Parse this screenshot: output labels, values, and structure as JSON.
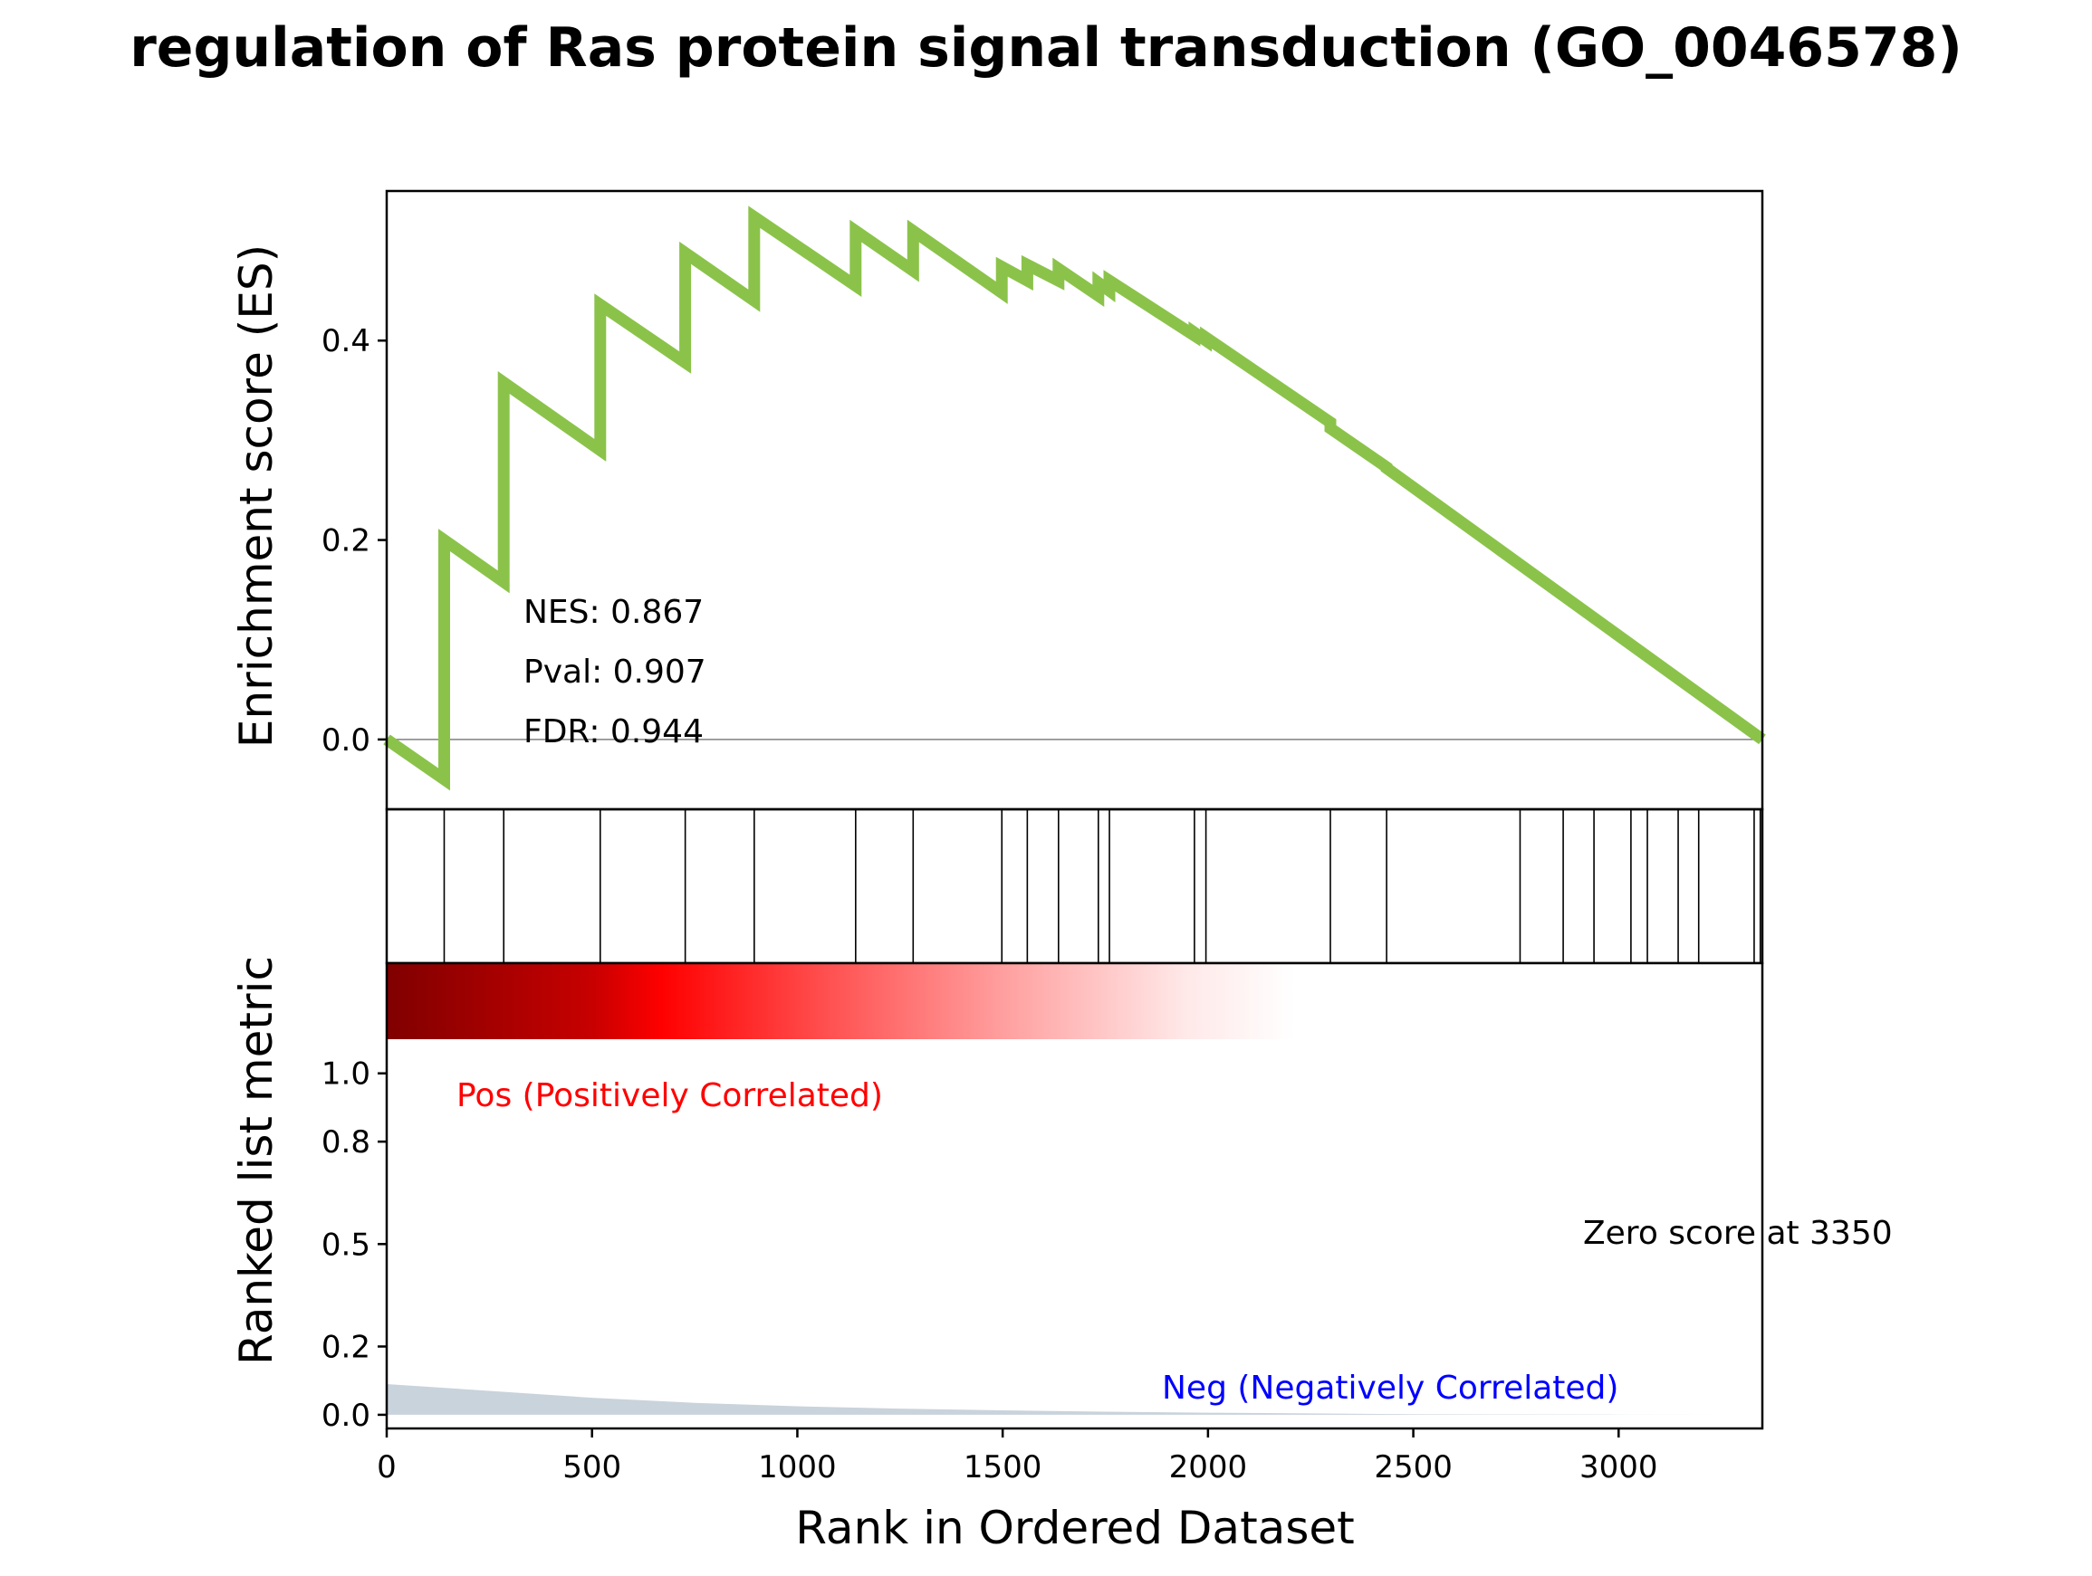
{
  "chart_data": {
    "type": "line",
    "title": "regulation of Ras protein signal transduction (GO_0046578)",
    "xlabel": "Rank in Ordered Dataset",
    "xlim": [
      0,
      3350
    ],
    "x_ticks": [
      0,
      500,
      1000,
      1500,
      2000,
      2500,
      3000
    ],
    "x_tick_labels": [
      "0",
      "500",
      "1000",
      "1500",
      "2000",
      "2500",
      "3000"
    ],
    "es_panel": {
      "ylabel": "Enrichment score (ES)",
      "ylim": [
        -0.07,
        0.55
      ],
      "y_ticks": [
        0.0,
        0.2,
        0.4
      ],
      "y_tick_labels": [
        "0.0",
        "0.2",
        "0.4"
      ],
      "line_color": "#8BC34A",
      "zero_line": true,
      "series": [
        {
          "x": [
            0,
            140,
            140,
            285,
            285,
            520,
            520,
            727,
            727,
            895,
            895,
            1142,
            1142,
            1282,
            1282,
            1498,
            1498,
            1560,
            1560,
            1636,
            1636,
            1733,
            1733,
            1760,
            1760,
            1967,
            1967,
            1995,
            1995,
            2298,
            2298,
            2435,
            2435,
            3350
          ],
          "y": [
            0.0,
            -0.04,
            0.2,
            0.158,
            0.358,
            0.29,
            0.436,
            0.378,
            0.488,
            0.44,
            0.524,
            0.455,
            0.51,
            0.47,
            0.51,
            0.448,
            0.474,
            0.46,
            0.476,
            0.46,
            0.472,
            0.445,
            0.458,
            0.45,
            0.46,
            0.405,
            0.408,
            0.4,
            0.403,
            0.318,
            0.312,
            0.273,
            0.272,
            0.0
          ]
        }
      ],
      "annotations": [
        "NES: 0.867",
        "Pval: 0.907",
        "FDR: 0.944"
      ]
    },
    "hits_panel": {
      "positions": [
        140,
        285,
        520,
        727,
        895,
        1142,
        1282,
        1498,
        1560,
        1636,
        1733,
        1760,
        1967,
        1995,
        2298,
        2435,
        2760,
        2865,
        2940,
        3030,
        3070,
        3145,
        3195,
        3330,
        3345
      ]
    },
    "rank_panel": {
      "ylabel": "Ranked list metric",
      "ylim": [
        -0.04,
        1.1
      ],
      "y_ticks": [
        0.0,
        0.2,
        0.5,
        0.8,
        1.0
      ],
      "y_tick_labels": [
        "0.0",
        "0.2",
        "0.5",
        "0.8",
        "1.0"
      ],
      "fill_color": "#C9D3DB",
      "metric": {
        "x": [
          0,
          250,
          500,
          750,
          1000,
          1250,
          1500,
          1750,
          2000,
          2250,
          2500,
          2750,
          3000,
          3350
        ],
        "y": [
          0.09,
          0.07,
          0.05,
          0.035,
          0.025,
          0.018,
          0.013,
          0.009,
          0.006,
          0.004,
          0.002,
          0.001,
          0.0005,
          0.0
        ]
      },
      "heatmap": {
        "colors": [
          "#800000",
          "#C80000",
          "#FF0000",
          "#FF5050",
          "#FFA0A0",
          "#FFE8E8",
          "#FFFFFF"
        ],
        "stops": [
          0,
          0.15,
          0.2,
          0.32,
          0.45,
          0.58,
          0.66
        ]
      },
      "pos_label": "Pos (Positively Correlated)",
      "pos_color": "#FF0000",
      "neg_label": "Neg (Negatively Correlated)",
      "neg_color": "#0000FF",
      "zero_label": "Zero score at 3350"
    }
  }
}
